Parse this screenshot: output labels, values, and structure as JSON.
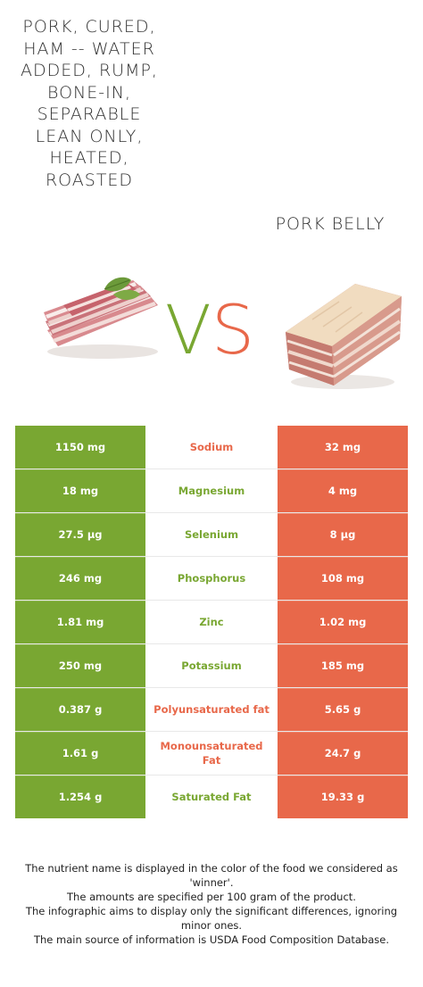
{
  "left_food": {
    "title": "Pork, cured, ham -- water added, rump, bone-in, separable lean only, heated, roasted",
    "color": "#79a732",
    "image_icon": "sliced-bacon-icon"
  },
  "right_food": {
    "title": "Pork belly",
    "color": "#e8684a",
    "image_icon": "pork-belly-slab-icon"
  },
  "vs": {
    "v": "V",
    "s": "S"
  },
  "nutrients": [
    {
      "name": "Sodium",
      "left": "1150 mg",
      "right": "32 mg",
      "winner": "right"
    },
    {
      "name": "Magnesium",
      "left": "18 mg",
      "right": "4 mg",
      "winner": "left"
    },
    {
      "name": "Selenium",
      "left": "27.5 µg",
      "right": "8 µg",
      "winner": "left"
    },
    {
      "name": "Phosphorus",
      "left": "246 mg",
      "right": "108 mg",
      "winner": "left"
    },
    {
      "name": "Zinc",
      "left": "1.81 mg",
      "right": "1.02 mg",
      "winner": "left"
    },
    {
      "name": "Potassium",
      "left": "250 mg",
      "right": "185 mg",
      "winner": "left"
    },
    {
      "name": "Polyunsaturated fat",
      "left": "0.387 g",
      "right": "5.65 g",
      "winner": "right"
    },
    {
      "name": "Monounsaturated Fat",
      "left": "1.61 g",
      "right": "24.7 g",
      "winner": "right"
    },
    {
      "name": "Saturated Fat",
      "left": "1.254 g",
      "right": "19.33 g",
      "winner": "left"
    }
  ],
  "footer": {
    "line1": "The nutrient name is displayed in the color of the food we considered as 'winner'.",
    "line2": "The amounts are specified per 100 gram of the product.",
    "line3": "The infographic aims to display only the significant differences, ignoring minor ones.",
    "line4": "The main source of information is USDA Food Composition Database."
  }
}
